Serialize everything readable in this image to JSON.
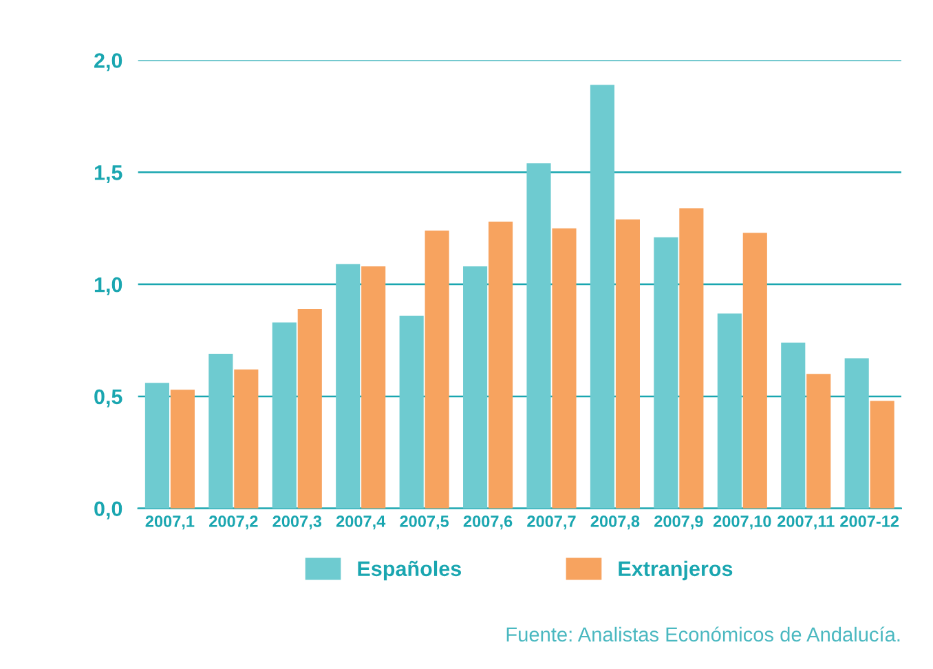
{
  "chart_data": {
    "type": "bar",
    "categories": [
      "2007,1",
      "2007,2",
      "2007,3",
      "2007,4",
      "2007,5",
      "2007,6",
      "2007,7",
      "2007,8",
      "2007,9",
      "2007,10",
      "2007,11",
      "2007-12"
    ],
    "series": [
      {
        "name": "Españoles",
        "color": "#6ecbd0",
        "values": [
          0.56,
          0.69,
          0.83,
          1.09,
          0.86,
          1.08,
          1.54,
          1.89,
          1.21,
          0.87,
          0.74,
          0.67
        ]
      },
      {
        "name": "Extranjeros",
        "color": "#f7a35f",
        "values": [
          0.53,
          0.62,
          0.89,
          1.08,
          1.24,
          1.28,
          1.25,
          1.29,
          1.34,
          1.23,
          0.6,
          0.48
        ]
      }
    ],
    "ylim": [
      0,
      2.0
    ],
    "yticks": [
      {
        "value": 0,
        "label": "0,0"
      },
      {
        "value": 0.5,
        "label": "0,5"
      },
      {
        "value": 1.0,
        "label": "1,0"
      },
      {
        "value": 1.5,
        "label": "1,5"
      },
      {
        "value": 2.0,
        "label": "2,0"
      }
    ],
    "grid": "y",
    "legend": "bottom",
    "annotations": [
      "Fuente: Analistas Económicos de Andalucía."
    ]
  }
}
